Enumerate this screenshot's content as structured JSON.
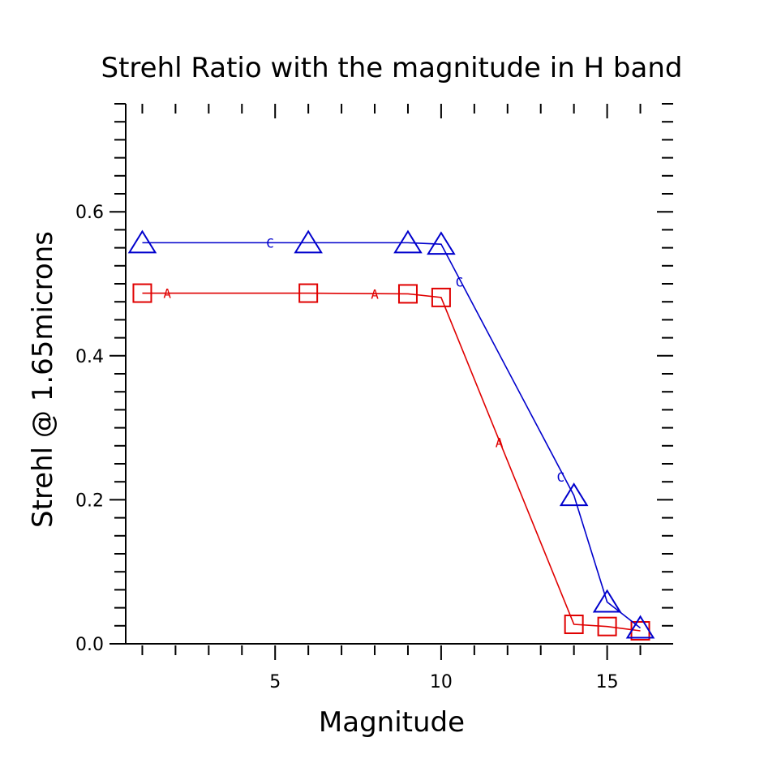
{
  "chart_data": {
    "type": "line",
    "title": "Strehl Ratio with the magnitude in H band",
    "xlabel": "Magnitude",
    "ylabel": "Strehl @ 1.65microns",
    "xlim": [
      0.5,
      16.5
    ],
    "ylim": [
      0.0,
      0.75
    ],
    "xticks": [
      5,
      10,
      15
    ],
    "yticks": [
      0.0,
      0.2,
      0.4,
      0.6
    ],
    "ytick_labels": [
      "0.0",
      "0.2",
      "0.4",
      "0.6"
    ],
    "xtick_labels": [
      "5",
      "10",
      "15"
    ],
    "grid": false,
    "series": [
      {
        "name": "A",
        "color": "#e00000",
        "marker": "square",
        "x": [
          1,
          6,
          9,
          10,
          14,
          15,
          16
        ],
        "y": [
          0.487,
          0.487,
          0.486,
          0.481,
          0.027,
          0.024,
          0.018
        ],
        "label_points": [
          [
            1.75,
            0.487
          ],
          [
            8.0,
            0.486
          ],
          [
            11.75,
            0.28
          ]
        ],
        "label_text": "A"
      },
      {
        "name": "C",
        "color": "#0000cc",
        "marker": "triangle",
        "x": [
          1,
          6,
          9,
          10,
          14,
          15,
          16
        ],
        "y": [
          0.557,
          0.557,
          0.557,
          0.555,
          0.206,
          0.058,
          0.022
        ],
        "label_points": [
          [
            4.85,
            0.557
          ],
          [
            10.55,
            0.503
          ],
          [
            13.6,
            0.232
          ]
        ],
        "label_text": "C"
      }
    ]
  }
}
